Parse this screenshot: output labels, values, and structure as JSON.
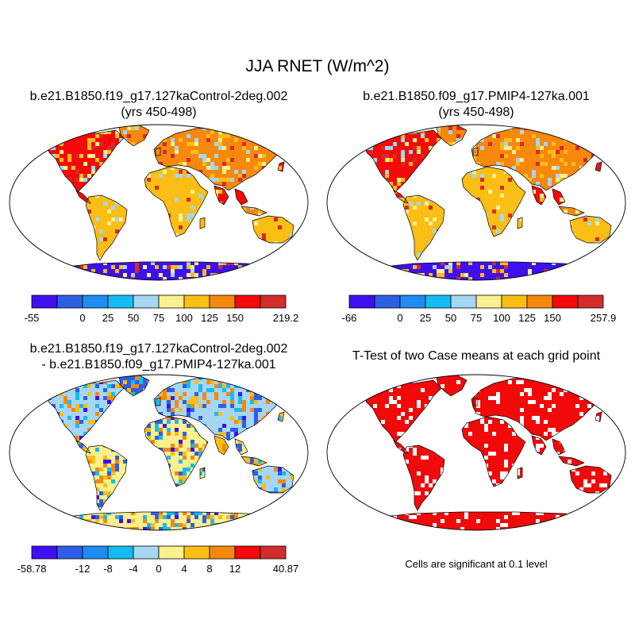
{
  "main_title": "JJA RNET (W/m^2)",
  "panels": [
    {
      "title_line1": "b.e21.B1850.f19_g17.127kaControl-2deg.002",
      "title_line2": "(yrs 450-498)",
      "colorbar": {
        "labels": [
          "-55",
          "0",
          "25",
          "50",
          "75",
          "100",
          "125",
          "150",
          "219.2"
        ],
        "colors": [
          "#3e10ef",
          "#2d5fe6",
          "#1e8cf0",
          "#14bcf2",
          "#a6d6f2",
          "#fbf08e",
          "#fbbe14",
          "#f7880e",
          "#f40a0a",
          "#d32c2c"
        ]
      }
    },
    {
      "title_line1": "b.e21.B1850.f09_g17.PMIP4-127ka.001",
      "title_line2": "(yrs 450-498)",
      "colorbar": {
        "labels": [
          "-66",
          "0",
          "25",
          "50",
          "75",
          "100",
          "125",
          "150",
          "257.9"
        ],
        "colors": [
          "#3e10ef",
          "#2d5fe6",
          "#1e8cf0",
          "#14bcf2",
          "#a6d6f2",
          "#fbf08e",
          "#fbbe14",
          "#f7880e",
          "#f40a0a",
          "#d32c2c"
        ]
      }
    },
    {
      "title_line1": "b.e21.B1850.f19_g17.127kaControl-2deg.002",
      "title_line2": "- b.e21.B1850.f09_g17.PMIP4-127ka.001",
      "colorbar": {
        "labels": [
          "-58.78",
          "-12",
          "-8",
          "-4",
          "0",
          "4",
          "8",
          "12",
          "40.87"
        ],
        "colors": [
          "#3e10ef",
          "#2d5fe6",
          "#1e8cf0",
          "#14bcf2",
          "#a6d6f2",
          "#fbf08e",
          "#fbbe14",
          "#f7880e",
          "#f40a0a",
          "#d32c2c"
        ]
      }
    },
    {
      "title_line1": "T-Test of two Case means at each grid point",
      "title_line2": "",
      "footnote": "Cells are significant at 0.1 level",
      "fill_color": "#f00a0a"
    }
  ]
}
